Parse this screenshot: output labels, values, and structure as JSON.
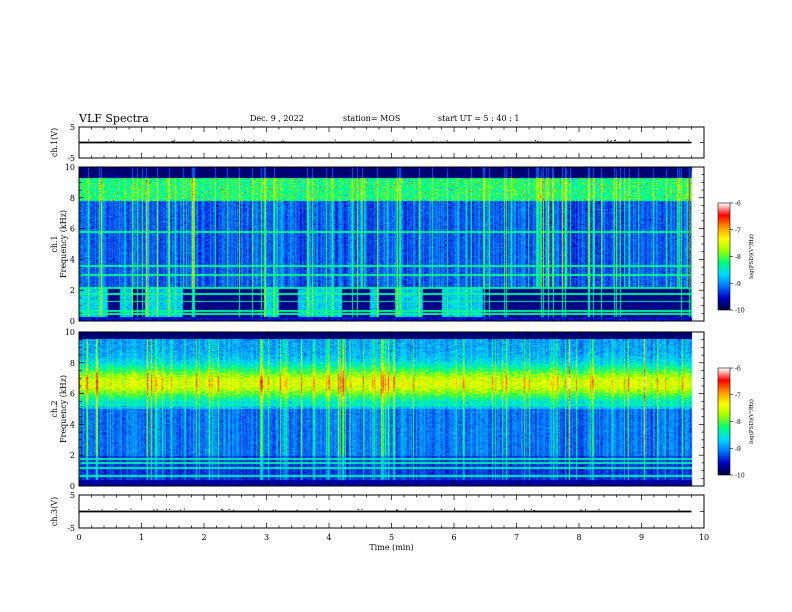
{
  "header": {
    "title": "VLF Spectra",
    "date": "Dec. 9 , 2022",
    "station": "station= MOS",
    "start_time": "start UT = 5 : 40 : 1"
  },
  "chart_data": [
    {
      "type": "line",
      "panel": "ch1-waveform",
      "ylabel": "ch.1(V)",
      "ylim": [
        -5,
        5
      ],
      "yticks": [
        "5",
        "-5"
      ],
      "x": [
        0,
        9.8
      ],
      "values": [
        0,
        0
      ]
    },
    {
      "type": "heatmap",
      "panel": "ch1-spectrogram",
      "ylabel": "ch.1 Frequency (kHz)",
      "ylim": [
        0,
        10
      ],
      "yticks": [
        "0",
        "2",
        "4",
        "6",
        "8",
        "10"
      ],
      "xlim": [
        0,
        10
      ],
      "data_end_min": 9.8,
      "colorbar": {
        "label": "log(PSD)(V²/Hz)",
        "range": [
          -10,
          -6
        ],
        "ticks": [
          "-6",
          "-7",
          "-8",
          "-9",
          "-10"
        ],
        "colors": [
          "#00003a",
          "#0000c8",
          "#0078ff",
          "#00dcff",
          "#00ff78",
          "#a0ff00",
          "#ffff00",
          "#ff9600",
          "#ff0000",
          "#ffffff"
        ]
      }
    },
    {
      "type": "heatmap",
      "panel": "ch2-spectrogram",
      "ylabel": "ch.2 Frequency (kHz)",
      "ylim": [
        0,
        10
      ],
      "yticks": [
        "0",
        "2",
        "4",
        "6",
        "8",
        "10"
      ],
      "xlim": [
        0,
        10
      ],
      "data_end_min": 9.8,
      "colorbar": {
        "label": "log(PSD)(V²/Hz)",
        "range": [
          -10,
          -6
        ],
        "ticks": [
          "-6",
          "-7",
          "-8",
          "-9",
          "-10"
        ],
        "colors": [
          "#00003a",
          "#0000c8",
          "#0078ff",
          "#00dcff",
          "#00ff78",
          "#a0ff00",
          "#ffff00",
          "#ff9600",
          "#ff0000",
          "#ffffff"
        ]
      }
    },
    {
      "type": "line",
      "panel": "ch3-waveform",
      "ylabel": "ch.3(V)",
      "ylim": [
        -5,
        5
      ],
      "yticks": [
        "5",
        "-5"
      ],
      "x": [
        0,
        9.8
      ],
      "values": [
        0,
        0
      ]
    }
  ],
  "xaxis": {
    "label": "Time (min)",
    "ticks": [
      "0",
      "1",
      "2",
      "3",
      "4",
      "5",
      "6",
      "7",
      "8",
      "9",
      "10"
    ],
    "range": [
      0,
      10
    ]
  }
}
